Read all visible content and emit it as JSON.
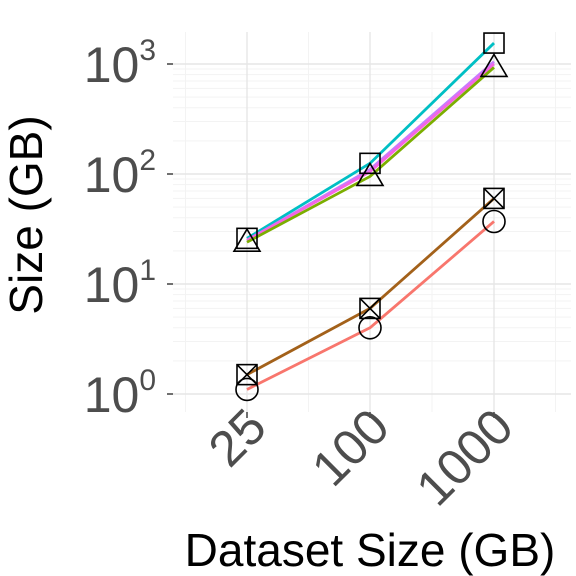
{
  "chart_data": {
    "type": "line",
    "title": "",
    "xlabel": "Dataset Size (GB)",
    "ylabel": "Size (GB)",
    "y_scale": "log10",
    "ylim": [
      0.82,
      2000
    ],
    "categories": [
      "25",
      "100",
      "1000"
    ],
    "y_ticks": [
      {
        "value": 1,
        "base": "10",
        "exp": "0"
      },
      {
        "value": 10,
        "base": "10",
        "exp": "1"
      },
      {
        "value": 100,
        "base": "10",
        "exp": "2"
      },
      {
        "value": 1000,
        "base": "10",
        "exp": "3"
      }
    ],
    "grid": true,
    "legend": "none",
    "series": [
      {
        "color": "#00BFC4",
        "marker": "square",
        "values": [
          26,
          125,
          1550
        ]
      },
      {
        "color": "#C77CFF",
        "marker": "none",
        "values": [
          25,
          110,
          1050
        ]
      },
      {
        "color": "#F564E3",
        "marker": "none",
        "values": [
          25,
          105,
          1000
        ]
      },
      {
        "color": "#7CAE00",
        "marker": "triangle",
        "values": [
          24,
          95,
          930
        ]
      },
      {
        "color": "#A3611A",
        "marker": "square-x",
        "values": [
          1.5,
          6.0,
          60
        ]
      },
      {
        "color": "#F8766D",
        "marker": "circle",
        "values": [
          1.1,
          4.0,
          37
        ]
      }
    ]
  }
}
